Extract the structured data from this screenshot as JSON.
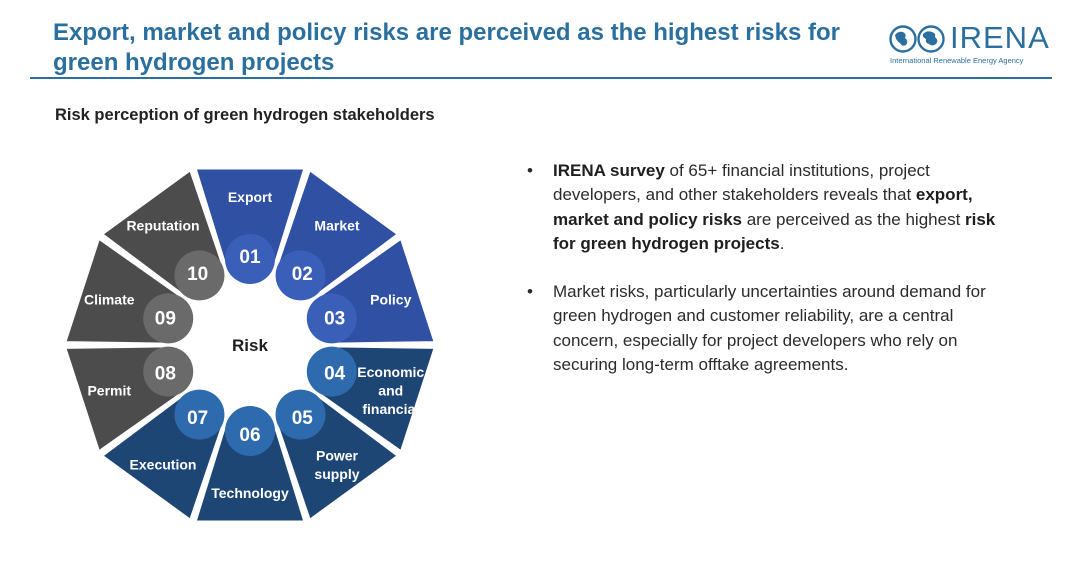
{
  "header": {
    "title": "Export, market and policy risks are perceived as the highest risks for green hydrogen projects",
    "logo_name": "IRENA",
    "logo_tagline": "International Renewable Energy Agency"
  },
  "subtitle": "Risk perception of green hydrogen stakeholders",
  "wheel": {
    "center_label": "Risk",
    "segments": [
      {
        "num": "01",
        "lines": [
          "Export"
        ],
        "group": "blue"
      },
      {
        "num": "02",
        "lines": [
          "Market"
        ],
        "group": "blue"
      },
      {
        "num": "03",
        "lines": [
          "Policy"
        ],
        "group": "blue"
      },
      {
        "num": "04",
        "lines": [
          "Economic",
          "and",
          "financial"
        ],
        "group": "navy"
      },
      {
        "num": "05",
        "lines": [
          "Power",
          "supply"
        ],
        "group": "navy"
      },
      {
        "num": "06",
        "lines": [
          "Technology"
        ],
        "group": "navy"
      },
      {
        "num": "07",
        "lines": [
          "Execution"
        ],
        "group": "navy"
      },
      {
        "num": "08",
        "lines": [
          "Permit"
        ],
        "group": "gray"
      },
      {
        "num": "09",
        "lines": [
          "Climate"
        ],
        "group": "gray"
      },
      {
        "num": "10",
        "lines": [
          "Reputation"
        ],
        "group": "gray"
      }
    ]
  },
  "bullets": [
    {
      "parts": [
        {
          "text": "IRENA survey",
          "bold": true
        },
        {
          "text": " of 65+ financial institutions, project developers, and other stakeholders reveals that ",
          "bold": false
        },
        {
          "text": "export, market and policy risks",
          "bold": true
        },
        {
          "text": " are perceived as the highest ",
          "bold": false
        },
        {
          "text": "risk for green hydrogen projects",
          "bold": true
        },
        {
          "text": ".",
          "bold": false
        }
      ]
    },
    {
      "parts": [
        {
          "text": "Market risks, particularly uncertainties around demand for green hydrogen and customer reliability, are a central concern, especially for project developers who rely on securing long-term offtake agreements.",
          "bold": false
        }
      ]
    }
  ],
  "colors": {
    "title": "#2a6f9e",
    "blue_outer": "#2f50a3",
    "blue_inner": "#3a5fb8",
    "navy_outer": "#1e4675",
    "navy_inner": "#2e6aae",
    "gray_outer": "#4c4c4c",
    "gray_inner": "#6a6a6a"
  }
}
